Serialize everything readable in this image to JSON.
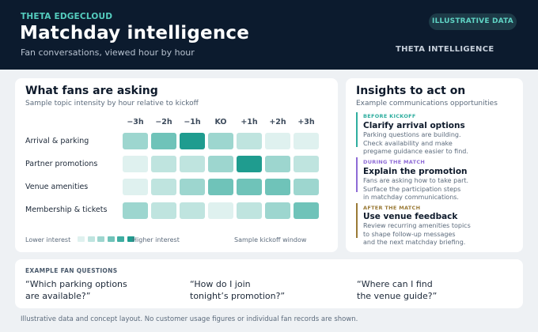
{
  "header": {
    "brand": "THETA EDGECLOUD",
    "title": "Matchday intelligence",
    "subtitle": "Fan conversations, viewed hour by hour",
    "badge": "ILLUSTRATIVE DATA",
    "brand_right": "THETA INTELLIGENCE"
  },
  "heatmap": {
    "title": "What fans are asking",
    "subtitle": "Sample topic intensity by hour relative to kickoff",
    "columns": [
      "−3h",
      "−2h",
      "−1h",
      "KO",
      "+1h",
      "+2h",
      "+3h"
    ],
    "rows": [
      {
        "label": "Arrival & parking",
        "levels": [
          3,
          4,
          5,
          3,
          2,
          1,
          1
        ]
      },
      {
        "label": "Partner promotions",
        "levels": [
          1,
          2,
          2,
          3,
          5,
          3,
          2
        ]
      },
      {
        "label": "Venue amenities",
        "levels": [
          1,
          2,
          3,
          4,
          4,
          4,
          3
        ]
      },
      {
        "label": "Membership & tickets",
        "levels": [
          3,
          2,
          2,
          1,
          2,
          3,
          4
        ]
      }
    ],
    "palette": [
      "#ffffff",
      "#dff1ef",
      "#bfe4df",
      "#9dd6cf",
      "#6fc3b9",
      "#1f9c8f"
    ],
    "legend": {
      "low": "Lower interest",
      "high": "Higher interest",
      "note": "Sample kickoff window",
      "swatches": [
        "#dff1ef",
        "#bfe4df",
        "#9dd6cf",
        "#6fc3b9",
        "#3eada1",
        "#1f9c8f"
      ]
    }
  },
  "insights": {
    "title": "Insights to act on",
    "subtitle": "Example communications opportunities",
    "items": [
      {
        "tag": "BEFORE KICKOFF",
        "color": "#2fae9f",
        "heading": "Clarify arrival options",
        "lines": [
          "Parking questions are building.",
          "Check availability and make",
          "pregame guidance easier to find."
        ]
      },
      {
        "tag": "DURING THE MATCH",
        "color": "#8e6bd6",
        "heading": "Explain the promotion",
        "lines": [
          "Fans are asking how to take part.",
          "Surface the participation steps",
          "in matchday communications."
        ]
      },
      {
        "tag": "AFTER THE MATCH",
        "color": "#9a7a36",
        "heading": "Use venue feedback",
        "lines": [
          "Review recurring amenities topics",
          "to shape follow-up messages",
          "and the next matchday briefing."
        ]
      }
    ]
  },
  "questions": {
    "label": "EXAMPLE FAN QUESTIONS",
    "items": [
      [
        "“Which parking options",
        "are available?”"
      ],
      [
        "“How do I join",
        "tonight’s promotion?”"
      ],
      [
        "“Where can I find",
        "the venue guide?”"
      ]
    ]
  },
  "footer": "Illustrative data and concept layout. No customer usage figures or individual fan records are shown."
}
